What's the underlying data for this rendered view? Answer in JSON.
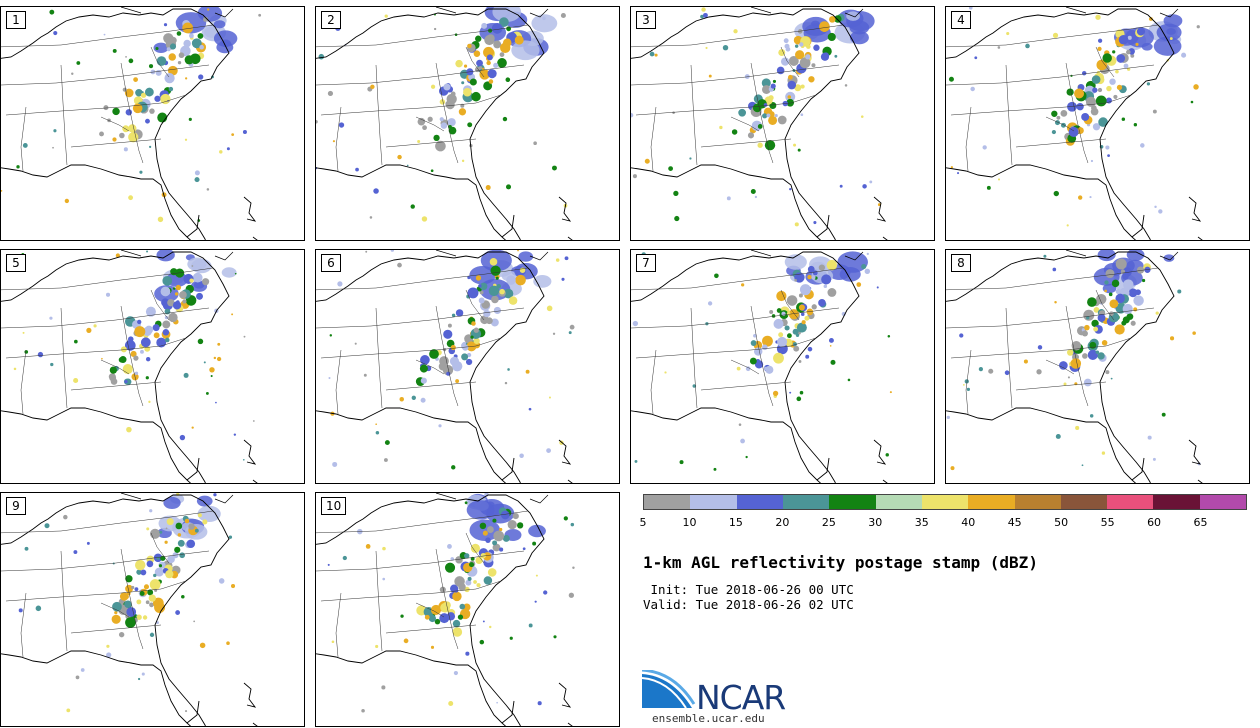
{
  "panels": [
    "1",
    "2",
    "3",
    "4",
    "5",
    "6",
    "7",
    "8",
    "9",
    "10"
  ],
  "colorbar": {
    "colors": [
      "#a0a0a0",
      "#b4bee8",
      "#5563d3",
      "#4b9597",
      "#138313",
      "#b5dbb5",
      "#ede36b",
      "#e9ad24",
      "#b9802f",
      "#89553a",
      "#e9507c",
      "#6a1336",
      "#b24aab"
    ],
    "ticks": [
      "5",
      "10",
      "15",
      "20",
      "25",
      "30",
      "35",
      "40",
      "45",
      "50",
      "55",
      "60",
      "65"
    ]
  },
  "title": "1-km AGL reflectivity postage stamp (dBZ)",
  "init_line": " Init: Tue 2018-06-26 00 UTC",
  "valid_line": "Valid: Tue 2018-06-26 02 UTC",
  "logo": {
    "name": "NCAR",
    "url": "ensemble.ucar.edu"
  }
}
